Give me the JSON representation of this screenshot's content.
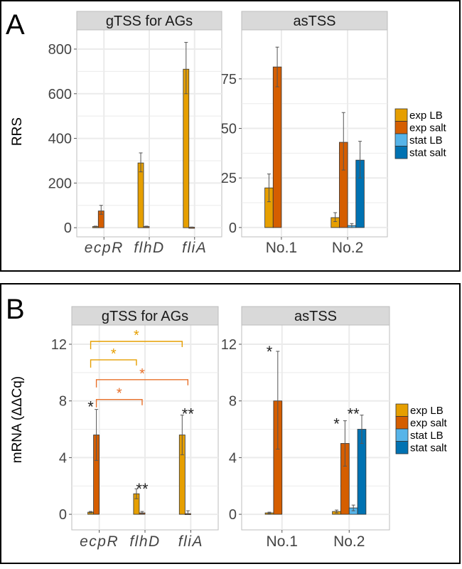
{
  "colors": {
    "exp LB": "#E69F00",
    "exp salt": "#D55E00",
    "stat LB": "#56B4E9",
    "stat salt": "#0072B2",
    "strip": "#d9d9d9",
    "grid": "#ebebeb",
    "bracket_yellow": "#E69F00",
    "bracket_orange": "#E8702A"
  },
  "legend": [
    "exp LB",
    "exp salt",
    "stat LB",
    "stat salt"
  ],
  "chart_data": [
    {
      "panel_label": "A",
      "type": "bar",
      "ylabel": "RRS",
      "facets": [
        {
          "title": "gTSS for AGs",
          "categories": [
            "ecpR",
            "flhD",
            "fliA"
          ],
          "italic": true,
          "ylim": [
            -41,
            886
          ],
          "yticks": [
            0,
            200,
            400,
            600,
            800
          ],
          "ytick_labels": [
            "0",
            "200",
            "400",
            "600",
            "800"
          ],
          "series": [
            {
              "name": "exp LB",
              "values": [
                5,
                290,
                710
              ],
              "err": [
                [
                  3,
                  7
                ],
                [
                  250,
                  335
                ],
                [
                  600,
                  830
                ]
              ]
            },
            {
              "name": "exp salt",
              "values": [
                75,
                5,
                2
              ],
              "err": [
                [
                  60,
                  100
                ],
                [
                  3,
                  7
                ],
                [
                  1,
                  3
                ]
              ]
            }
          ],
          "stars": [],
          "brackets": []
        },
        {
          "title": "asTSS",
          "categories": [
            "No.1",
            "No.2"
          ],
          "italic": false,
          "ylim": [
            -4.7,
            99.7
          ],
          "yticks": [
            0,
            25,
            50,
            75
          ],
          "ytick_labels": [
            "0",
            "25",
            "50",
            "75"
          ],
          "series": [
            {
              "name": "exp LB",
              "values": [
                20,
                5
              ],
              "err": [
                [
                  13,
                  27
                ],
                [
                  3,
                  7.5
                ]
              ]
            },
            {
              "name": "exp salt",
              "values": [
                81,
                43
              ],
              "err": [
                [
                  71,
                  91
                ],
                [
                  29,
                  58
                ]
              ]
            },
            {
              "name": "stat LB",
              "values": [
                null,
                1
              ],
              "err": [
                null,
                [
                  0,
                  2
                ]
              ]
            },
            {
              "name": "stat salt",
              "values": [
                null,
                34
              ],
              "err": [
                null,
                [
                  25,
                  43.5
                ]
              ]
            }
          ],
          "stars": [],
          "brackets": []
        }
      ]
    },
    {
      "panel_label": "B",
      "type": "bar",
      "ylabel": "mRNA (ΔΔCq)",
      "facets": [
        {
          "title": "gTSS for AGs",
          "categories": [
            "ecpR",
            "flhD",
            "fliA"
          ],
          "italic": true,
          "ylim": [
            -1.1,
            12.2
          ],
          "yticks": [
            0,
            4,
            8,
            12
          ],
          "ytick_labels": [
            "0",
            "4",
            "8",
            "12"
          ],
          "series": [
            {
              "name": "exp LB",
              "values": [
                0.15,
                1.45,
                5.6
              ],
              "err": [
                [
                  0.1,
                  0.2
                ],
                [
                  1.1,
                  1.8
                ],
                [
                  4.2,
                  7.0
                ]
              ]
            },
            {
              "name": "exp salt",
              "values": [
                5.6,
                0.1,
                0.05
              ],
              "err": [
                [
                  3.8,
                  7.4
                ],
                [
                  0.05,
                  0.2
                ],
                [
                  0,
                  0.25
                ]
              ]
            }
          ],
          "stars": [
            {
              "text": "*",
              "cat": 0,
              "series": 0,
              "y": 7.8
            },
            {
              "text": "**",
              "cat": 1,
              "series": 1,
              "y": 2.0
            },
            {
              "text": "**",
              "cat": 2,
              "series": 1,
              "y": 7.3
            }
          ],
          "brackets": [
            {
              "from": [
                0,
                0
              ],
              "to": [
                2,
                0
              ],
              "y": 12.2,
              "label": "*",
              "color": "bracket_yellow"
            },
            {
              "from": [
                0,
                0
              ],
              "to": [
                1,
                0
              ],
              "y": 10.9,
              "label": "*",
              "color": "bracket_yellow"
            },
            {
              "from": [
                0,
                1
              ],
              "to": [
                2,
                1
              ],
              "y": 9.5,
              "label": "*",
              "color": "bracket_orange"
            },
            {
              "from": [
                0,
                1
              ],
              "to": [
                1,
                1
              ],
              "y": 8.1,
              "label": "*",
              "color": "bracket_orange"
            }
          ]
        },
        {
          "title": "asTSS",
          "categories": [
            "No.1",
            "No.2"
          ],
          "italic": false,
          "ylim": [
            -1.1,
            12.2
          ],
          "yticks": [
            0,
            4,
            8,
            12
          ],
          "ytick_labels": [
            "0",
            "4",
            "8",
            "12"
          ],
          "series": [
            {
              "name": "exp LB",
              "values": [
                0.1,
                0.2
              ],
              "err": [
                [
                  0.05,
                  0.15
                ],
                [
                  0.1,
                  0.3
                ]
              ]
            },
            {
              "name": "exp salt",
              "values": [
                8.0,
                5.0
              ],
              "err": [
                [
                  4.6,
                  11.5
                ],
                [
                  3.4,
                  6.6
                ]
              ]
            },
            {
              "name": "stat LB",
              "values": [
                null,
                0.45
              ],
              "err": [
                null,
                [
                  0.25,
                  0.65
                ]
              ]
            },
            {
              "name": "stat salt",
              "values": [
                null,
                6.0
              ],
              "err": [
                null,
                [
                  5.0,
                  7.0
                ]
              ]
            }
          ],
          "stars": [
            {
              "text": "*",
              "cat": 0,
              "series": 0,
              "y": 11.7
            },
            {
              "text": "*",
              "cat": 1,
              "series": 0,
              "y": 6.6
            },
            {
              "text": "**",
              "cat": 1,
              "series": 2,
              "y": 7.3
            }
          ],
          "brackets": []
        }
      ]
    }
  ]
}
